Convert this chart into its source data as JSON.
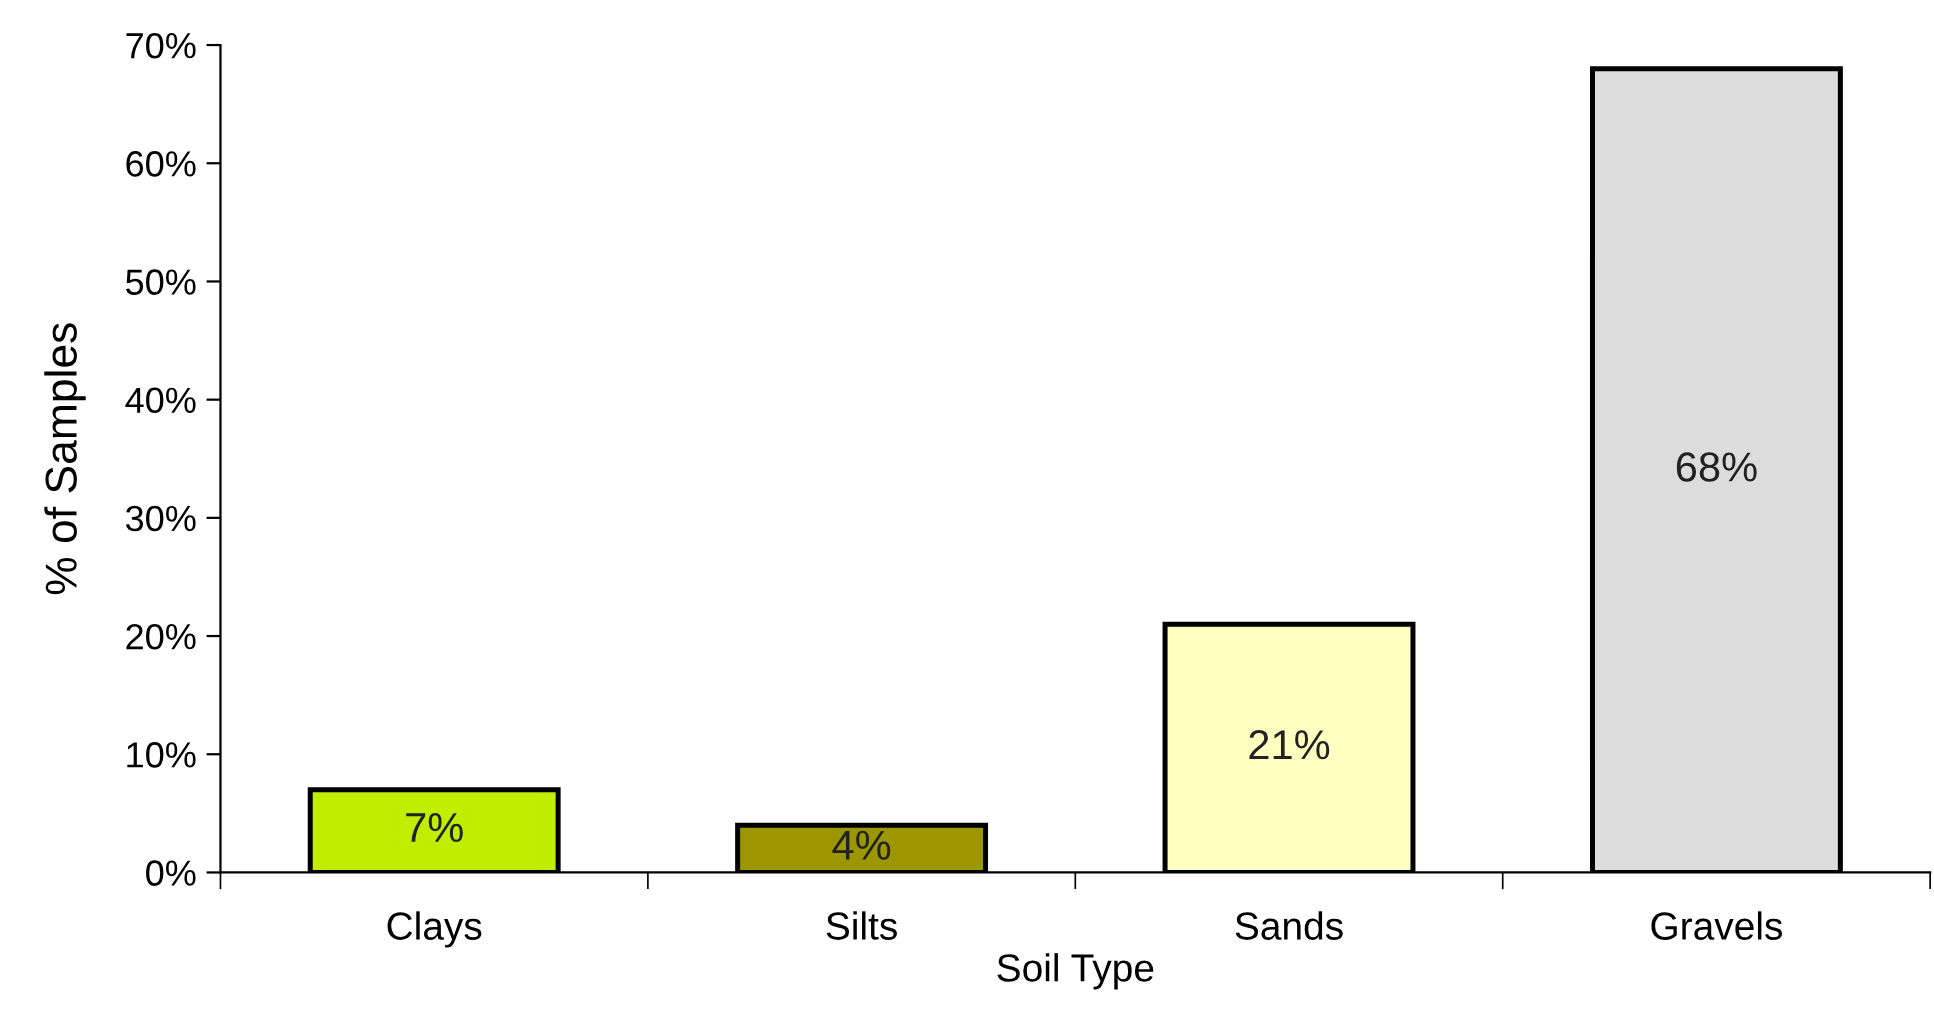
{
  "chart_data": {
    "type": "bar",
    "xlabel": "Soil Type",
    "ylabel": "% of Samples",
    "categories": [
      "Clays",
      "Silts",
      "Sands",
      "Gravels"
    ],
    "values": [
      7,
      4,
      21,
      68
    ],
    "value_labels": [
      "7%",
      "4%",
      "21%",
      "68%"
    ],
    "colors": [
      "#bfee00",
      "#9c9700",
      "#ffffc0",
      "#dcdcdc"
    ],
    "ylim": [
      0,
      70
    ],
    "yticks": [
      {
        "value": 0,
        "label": "0%"
      },
      {
        "value": 10,
        "label": "10%"
      },
      {
        "value": 20,
        "label": "20%"
      },
      {
        "value": 30,
        "label": "30%"
      },
      {
        "value": 40,
        "label": "40%"
      },
      {
        "value": 50,
        "label": "50%"
      },
      {
        "value": 60,
        "label": "60%"
      },
      {
        "value": 70,
        "label": "70%"
      }
    ],
    "grid": false,
    "legend": false
  }
}
